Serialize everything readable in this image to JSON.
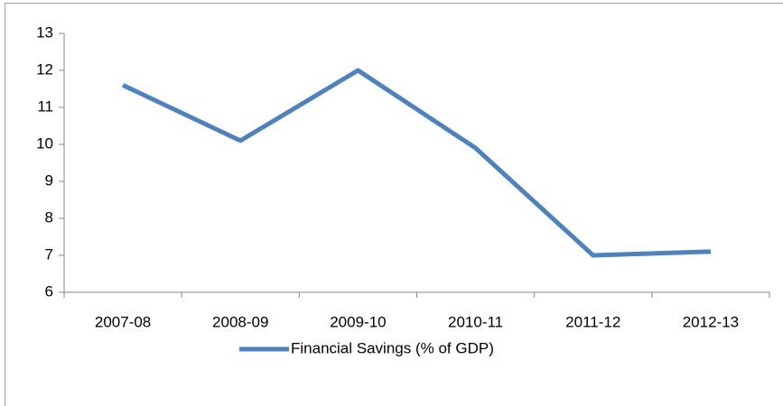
{
  "chart_data": {
    "type": "line",
    "categories": [
      "2007-08",
      "2008-09",
      "2009-10",
      "2010-11",
      "2011-12",
      "2012-13"
    ],
    "series": [
      {
        "name": "Financial Savings (% of GDP)",
        "color": "#4f81bd",
        "values": [
          11.6,
          10.1,
          12.0,
          9.9,
          7.0,
          7.1
        ]
      }
    ],
    "ylim": [
      6,
      13
    ],
    "yticks": [
      6,
      7,
      8,
      9,
      10,
      11,
      12,
      13
    ],
    "grid": false,
    "legend": "bottom"
  }
}
